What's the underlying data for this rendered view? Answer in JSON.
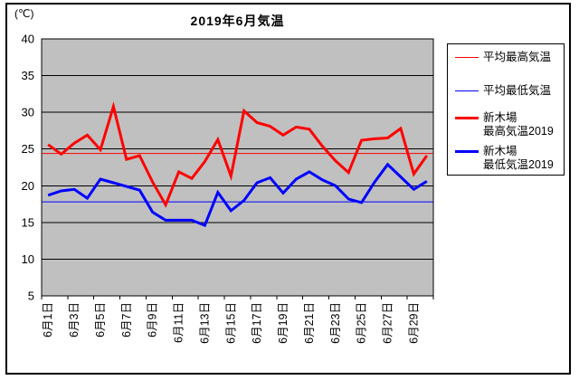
{
  "chart_data": {
    "type": "line",
    "title": "2019年6月気温",
    "y_unit": "(℃)",
    "ylim": [
      5,
      40
    ],
    "yticks": [
      40,
      35,
      30,
      25,
      20,
      15,
      10,
      5
    ],
    "x_tick_labels": [
      "6月1日",
      "6月3日",
      "6月5日",
      "6月7日",
      "6月9日",
      "6月11日",
      "6月13日",
      "6月15日",
      "6月17日",
      "6月19日",
      "6月21日",
      "6月23日",
      "6月25日",
      "6月27日",
      "6月29日"
    ],
    "n_days": 30,
    "grid": true,
    "plot_bg": "#c0c0c0",
    "legend_position": "right",
    "series": [
      {
        "name": "平均最高気温",
        "legend_line1": "平均最高気温",
        "color": "#ff0000",
        "thickness": 1,
        "constant": 24.4
      },
      {
        "name": "平均最低気温",
        "legend_line1": "平均最低気温",
        "color": "#0000ff",
        "thickness": 1,
        "constant": 17.8
      },
      {
        "name": "新木場 最高気温2019",
        "legend_line1": "新木場",
        "legend_line2": "最高気温2019",
        "color": "#ff0000",
        "thickness": 3,
        "values": [
          25.6,
          24.3,
          25.8,
          26.9,
          24.9,
          30.8,
          23.6,
          24.1,
          20.5,
          17.4,
          21.9,
          21.0,
          23.3,
          26.3,
          21.3,
          30.2,
          28.6,
          28.1,
          26.9,
          28.0,
          27.7,
          25.4,
          23.4,
          21.8,
          26.2,
          26.4,
          26.5,
          27.8,
          21.6,
          24.1
        ]
      },
      {
        "name": "新木場 最低気温2019",
        "legend_line1": "新木場",
        "legend_line2": "最低気温2019",
        "color": "#0000ff",
        "thickness": 3,
        "values": [
          18.7,
          19.3,
          19.5,
          18.3,
          20.9,
          20.4,
          19.9,
          19.4,
          16.4,
          15.3,
          15.3,
          15.3,
          14.6,
          19.1,
          16.6,
          18.0,
          20.4,
          21.1,
          19.0,
          20.9,
          21.9,
          20.8,
          20.0,
          18.2,
          17.7,
          20.5,
          22.9,
          21.2,
          19.5,
          20.6
        ]
      }
    ]
  }
}
